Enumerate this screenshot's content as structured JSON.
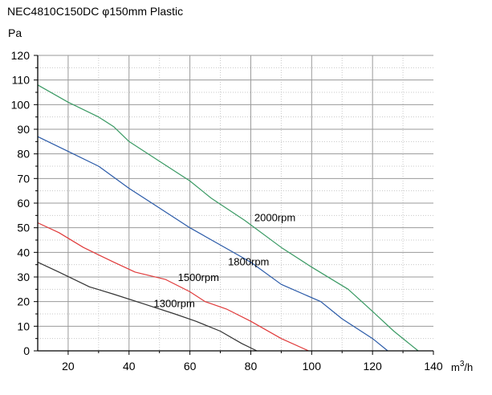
{
  "chart_data": {
    "type": "line",
    "title": "NEC4810C150DC φ150mm Plastic",
    "ylabel": "Pa",
    "xlabel_base": "m",
    "xlabel_sup": "3",
    "xlabel_tail": "/h",
    "xlim": [
      10,
      140
    ],
    "ylim": [
      0,
      120
    ],
    "xticks": [
      20,
      40,
      60,
      80,
      100,
      120,
      140
    ],
    "yticks": [
      0,
      10,
      20,
      30,
      40,
      50,
      60,
      70,
      80,
      90,
      100,
      110,
      120
    ],
    "grid": true,
    "series": [
      {
        "name": "2000rpm",
        "color": "#3a9a64",
        "x": [
          10,
          20,
          30,
          35,
          40,
          50,
          60,
          67,
          78,
          90,
          100,
          112,
          120,
          127,
          135
        ],
        "y": [
          108,
          101,
          95,
          91,
          85,
          77,
          69,
          62,
          53,
          42,
          34,
          25,
          16,
          8,
          0
        ]
      },
      {
        "name": "1800rpm",
        "color": "#2a5aa8",
        "x": [
          10,
          20,
          30,
          40,
          50,
          60,
          70,
          80,
          90,
          103,
          110,
          120,
          125
        ],
        "y": [
          87,
          81,
          75,
          66,
          58,
          50,
          43,
          36,
          27,
          20,
          13,
          5,
          0
        ]
      },
      {
        "name": "1500rpm",
        "color": "#e03a3a",
        "x": [
          10,
          17,
          25,
          35,
          42,
          52,
          60,
          65,
          72,
          80,
          90,
          99
        ],
        "y": [
          52,
          48,
          42,
          36,
          32,
          29,
          24,
          20,
          17,
          12,
          5,
          0
        ]
      },
      {
        "name": "1300rpm",
        "color": "#333333",
        "x": [
          10,
          17,
          27,
          35,
          45,
          55,
          62,
          70,
          77,
          82
        ],
        "y": [
          36,
          32,
          26,
          23,
          19,
          15,
          12,
          8,
          3,
          0
        ]
      }
    ]
  }
}
